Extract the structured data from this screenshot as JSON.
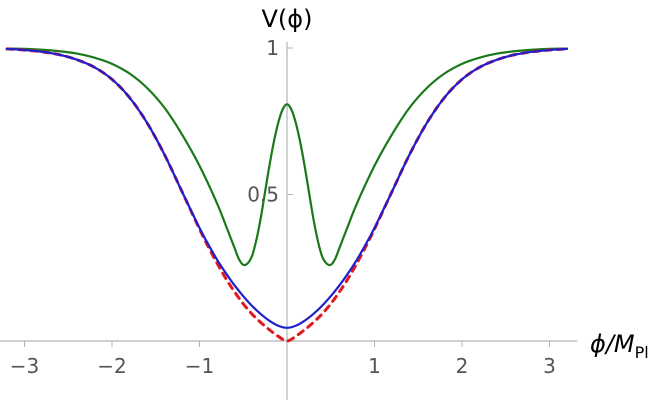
{
  "chart_data": {
    "type": "line",
    "xlabel": "ϕ/M",
    "xlabel_subscript": "Pl",
    "ylabel": "V(ϕ)",
    "xlim": [
      -3.25,
      3.25
    ],
    "ylim": [
      0,
      1
    ],
    "x_ticks": [
      {
        "value": -3,
        "label": "−3"
      },
      {
        "value": -2,
        "label": "−2"
      },
      {
        "value": -1,
        "label": "−1"
      },
      {
        "value": 1,
        "label": "1"
      },
      {
        "value": 2,
        "label": "2"
      },
      {
        "value": 3,
        "label": "3"
      }
    ],
    "y_ticks": [
      {
        "value": 0.5,
        "label": "0.5"
      },
      {
        "value": 1,
        "label": "1"
      }
    ],
    "grid": false,
    "legend": "none",
    "series": [
      {
        "color": "#1a7a1a",
        "style": "solid",
        "x": [
          -3.2,
          -3.0,
          -2.8,
          -2.6,
          -2.4,
          -2.2,
          -2.0,
          -1.8,
          -1.6,
          -1.4,
          -1.2,
          -1.0,
          -0.8,
          -0.7,
          -0.6,
          -0.55,
          -0.5,
          -0.45,
          -0.4,
          -0.35,
          -0.3,
          -0.25,
          -0.2,
          -0.15,
          -0.1,
          -0.05,
          0.0,
          0.05,
          0.1,
          0.15,
          0.2,
          0.25,
          0.3,
          0.35,
          0.4,
          0.45,
          0.5,
          0.55,
          0.6,
          0.7,
          0.8,
          1.0,
          1.2,
          1.4,
          1.6,
          1.8,
          2.0,
          2.2,
          2.4,
          2.6,
          2.8,
          3.0,
          3.2
        ],
        "y": [
          0.998,
          0.997,
          0.994,
          0.989,
          0.981,
          0.967,
          0.946,
          0.913,
          0.864,
          0.796,
          0.705,
          0.598,
          0.47,
          0.395,
          0.318,
          0.28,
          0.26,
          0.265,
          0.29,
          0.345,
          0.42,
          0.51,
          0.6,
          0.68,
          0.745,
          0.79,
          0.808,
          0.79,
          0.745,
          0.68,
          0.6,
          0.51,
          0.42,
          0.345,
          0.29,
          0.265,
          0.26,
          0.28,
          0.318,
          0.395,
          0.47,
          0.598,
          0.705,
          0.796,
          0.864,
          0.913,
          0.946,
          0.967,
          0.981,
          0.989,
          0.994,
          0.997,
          0.998
        ]
      },
      {
        "color": "#e0191e",
        "style": "dashed",
        "x": [
          -3.2,
          -3.0,
          -2.8,
          -2.6,
          -2.4,
          -2.2,
          -2.0,
          -1.8,
          -1.6,
          -1.4,
          -1.2,
          -1.0,
          -0.9,
          -0.8,
          -0.7,
          -0.6,
          -0.5,
          -0.4,
          -0.3,
          -0.2,
          -0.1,
          0.0,
          0.1,
          0.2,
          0.3,
          0.4,
          0.5,
          0.6,
          0.7,
          0.8,
          0.9,
          1.0,
          1.2,
          1.4,
          1.6,
          1.8,
          2.0,
          2.2,
          2.4,
          2.6,
          2.8,
          3.0,
          3.2
        ],
        "y": [
          0.997,
          0.993,
          0.987,
          0.977,
          0.96,
          0.934,
          0.893,
          0.831,
          0.745,
          0.636,
          0.51,
          0.382,
          0.322,
          0.266,
          0.214,
          0.168,
          0.127,
          0.092,
          0.063,
          0.038,
          0.016,
          0.0,
          0.016,
          0.038,
          0.063,
          0.092,
          0.127,
          0.168,
          0.214,
          0.266,
          0.322,
          0.382,
          0.51,
          0.636,
          0.745,
          0.831,
          0.893,
          0.934,
          0.96,
          0.977,
          0.987,
          0.993,
          0.997
        ]
      },
      {
        "color": "#1f1fcc",
        "style": "solid",
        "x": [
          -3.2,
          -3.0,
          -2.8,
          -2.6,
          -2.4,
          -2.2,
          -2.0,
          -1.8,
          -1.6,
          -1.4,
          -1.2,
          -1.0,
          -0.9,
          -0.8,
          -0.7,
          -0.6,
          -0.5,
          -0.4,
          -0.3,
          -0.2,
          -0.1,
          0.0,
          0.1,
          0.2,
          0.3,
          0.4,
          0.5,
          0.6,
          0.7,
          0.8,
          0.9,
          1.0,
          1.2,
          1.4,
          1.6,
          1.8,
          2.0,
          2.2,
          2.4,
          2.6,
          2.8,
          3.0,
          3.2
        ],
        "y": [
          0.997,
          0.993,
          0.987,
          0.977,
          0.96,
          0.934,
          0.893,
          0.831,
          0.745,
          0.636,
          0.51,
          0.386,
          0.33,
          0.278,
          0.232,
          0.19,
          0.153,
          0.12,
          0.092,
          0.069,
          0.052,
          0.045,
          0.052,
          0.069,
          0.092,
          0.12,
          0.153,
          0.19,
          0.232,
          0.278,
          0.33,
          0.386,
          0.51,
          0.636,
          0.745,
          0.831,
          0.893,
          0.934,
          0.96,
          0.977,
          0.987,
          0.993,
          0.997
        ]
      }
    ]
  }
}
